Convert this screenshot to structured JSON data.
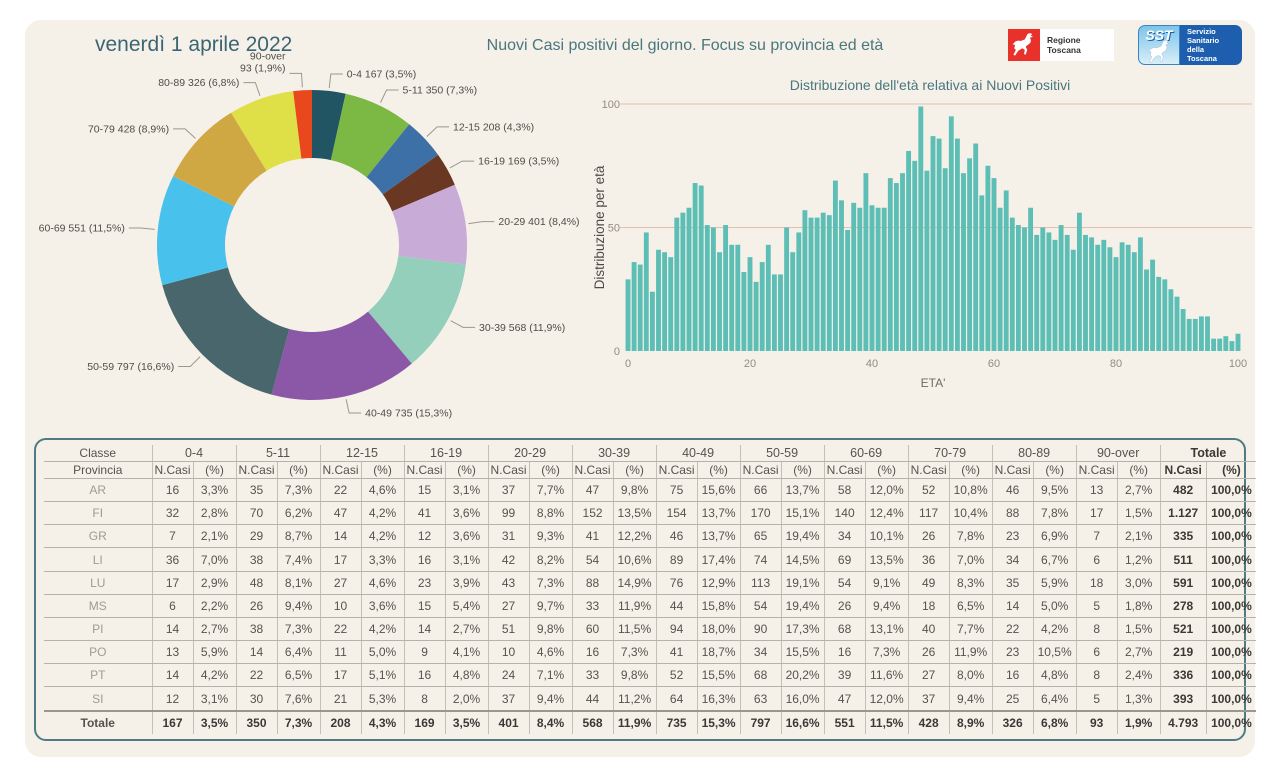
{
  "header": {
    "date": "venerdì 1 aprile 2022",
    "title": "Nuovi Casi positivi del giorno. Focus su provincia ed età",
    "logos": {
      "regione_label": "Regione Toscana",
      "regione_color": "#e8312a",
      "sst_abbr": "SST",
      "sst_label": "Servizio\nSanitario\ndella\nToscana",
      "sst_dark_blue": "#1d5fae",
      "sst_light_blue": "#7cc4e8"
    }
  },
  "chart_data": [
    {
      "type": "pie",
      "donut": true,
      "title": "",
      "categories": [
        "0-4",
        "5-11",
        "12-15",
        "16-19",
        "20-29",
        "30-39",
        "40-49",
        "50-59",
        "60-69",
        "70-79",
        "80-89",
        "90-over"
      ],
      "values": [
        167,
        350,
        208,
        169,
        401,
        568,
        735,
        797,
        551,
        428,
        326,
        93
      ],
      "percents": [
        "3,5%",
        "7,3%",
        "4,3%",
        "3,5%",
        "8,4%",
        "11,9%",
        "15,3%",
        "16,6%",
        "11,5%",
        "8,9%",
        "6,8%",
        "1,9%"
      ],
      "labels": [
        [
          "0-4 167 (3,5%)"
        ],
        [
          "5-11 350 (7,3%)"
        ],
        [
          "12-15 208 (4,3%)"
        ],
        [
          "16-19 169 (3,5%)"
        ],
        [
          "20-29 401 (8,4%)"
        ],
        [
          "30-39 568 (11,9%)"
        ],
        [
          "40-49 735 (15,3%)"
        ],
        [
          "50-59 797 (16,6%)"
        ],
        [
          "60-69 551 (11,5%)"
        ],
        [
          "70-79 428 (8,9%)"
        ],
        [
          "80-89 326 (6,8%)"
        ],
        [
          "90-over",
          "93 (1,9%)"
        ]
      ],
      "colors": [
        "#215563",
        "#7cb844",
        "#3d70a6",
        "#6a3723",
        "#c9abd8",
        "#93cfba",
        "#8a58a6",
        "#48666b",
        "#48c2ec",
        "#cfa743",
        "#dfdf48",
        "#e8481c"
      ],
      "legend_position": "outside-labels"
    },
    {
      "type": "bar",
      "title": "Distribuzione dell'età relativa ai Nuovi Positivi",
      "xlabel": "ETA'",
      "ylabel": "Distribuzione per età",
      "x_min": 0,
      "x_max": 100,
      "values": [
        29,
        36,
        35,
        48,
        24,
        41,
        40,
        38,
        54,
        56,
        58,
        68,
        67,
        51,
        50,
        40,
        51,
        43,
        43,
        32,
        38,
        28,
        36,
        43,
        31,
        31,
        50,
        40,
        48,
        57,
        54,
        54,
        56,
        55,
        69,
        61,
        49,
        60,
        58,
        72,
        59,
        58,
        58,
        70,
        68,
        72,
        81,
        77,
        99,
        73,
        87,
        86,
        74,
        95,
        86,
        72,
        78,
        84,
        63,
        75,
        70,
        58,
        65,
        54,
        51,
        50,
        58,
        47,
        50,
        48,
        45,
        51,
        47,
        41,
        56,
        47,
        46,
        43,
        45,
        42,
        38,
        44,
        43,
        40,
        46,
        33,
        37,
        30,
        29,
        25,
        22,
        17,
        13,
        13,
        14,
        14,
        5,
        5,
        6,
        4,
        7
      ],
      "ylim": [
        0,
        105
      ],
      "yticks": [
        0,
        50,
        100
      ],
      "xticks": [
        0,
        20,
        40,
        60,
        80,
        100
      ],
      "gridlines": [
        50,
        100
      ],
      "grid_on": true,
      "bar_color": "#5dbeb6",
      "grid_color": "#e3bfb1"
    }
  ],
  "table": {
    "corner": [
      "Classe",
      "Provincia"
    ],
    "groups": [
      "0-4",
      "5-11",
      "12-15",
      "16-19",
      "20-29",
      "30-39",
      "40-49",
      "50-59",
      "60-69",
      "70-79",
      "80-89",
      "90-over",
      "Totale"
    ],
    "subheaders": [
      "N.Casi",
      "(%)"
    ],
    "rows": [
      {
        "provincia": "AR",
        "cells": [
          "16",
          "3,3%",
          "35",
          "7,3%",
          "22",
          "4,6%",
          "15",
          "3,1%",
          "37",
          "7,7%",
          "47",
          "9,8%",
          "75",
          "15,6%",
          "66",
          "13,7%",
          "58",
          "12,0%",
          "52",
          "10,8%",
          "46",
          "9,5%",
          "13",
          "2,7%",
          "482",
          "100,0%"
        ]
      },
      {
        "provincia": "FI",
        "cells": [
          "32",
          "2,8%",
          "70",
          "6,2%",
          "47",
          "4,2%",
          "41",
          "3,6%",
          "99",
          "8,8%",
          "152",
          "13,5%",
          "154",
          "13,7%",
          "170",
          "15,1%",
          "140",
          "12,4%",
          "117",
          "10,4%",
          "88",
          "7,8%",
          "17",
          "1,5%",
          "1.127",
          "100,0%"
        ]
      },
      {
        "provincia": "GR",
        "cells": [
          "7",
          "2,1%",
          "29",
          "8,7%",
          "14",
          "4,2%",
          "12",
          "3,6%",
          "31",
          "9,3%",
          "41",
          "12,2%",
          "46",
          "13,7%",
          "65",
          "19,4%",
          "34",
          "10,1%",
          "26",
          "7,8%",
          "23",
          "6,9%",
          "7",
          "2,1%",
          "335",
          "100,0%"
        ]
      },
      {
        "provincia": "LI",
        "cells": [
          "36",
          "7,0%",
          "38",
          "7,4%",
          "17",
          "3,3%",
          "16",
          "3,1%",
          "42",
          "8,2%",
          "54",
          "10,6%",
          "89",
          "17,4%",
          "74",
          "14,5%",
          "69",
          "13,5%",
          "36",
          "7,0%",
          "34",
          "6,7%",
          "6",
          "1,2%",
          "511",
          "100,0%"
        ]
      },
      {
        "provincia": "LU",
        "cells": [
          "17",
          "2,9%",
          "48",
          "8,1%",
          "27",
          "4,6%",
          "23",
          "3,9%",
          "43",
          "7,3%",
          "88",
          "14,9%",
          "76",
          "12,9%",
          "113",
          "19,1%",
          "54",
          "9,1%",
          "49",
          "8,3%",
          "35",
          "5,9%",
          "18",
          "3,0%",
          "591",
          "100,0%"
        ]
      },
      {
        "provincia": "MS",
        "cells": [
          "6",
          "2,2%",
          "26",
          "9,4%",
          "10",
          "3,6%",
          "15",
          "5,4%",
          "27",
          "9,7%",
          "33",
          "11,9%",
          "44",
          "15,8%",
          "54",
          "19,4%",
          "26",
          "9,4%",
          "18",
          "6,5%",
          "14",
          "5,0%",
          "5",
          "1,8%",
          "278",
          "100,0%"
        ]
      },
      {
        "provincia": "PI",
        "cells": [
          "14",
          "2,7%",
          "38",
          "7,3%",
          "22",
          "4,2%",
          "14",
          "2,7%",
          "51",
          "9,8%",
          "60",
          "11,5%",
          "94",
          "18,0%",
          "90",
          "17,3%",
          "68",
          "13,1%",
          "40",
          "7,7%",
          "22",
          "4,2%",
          "8",
          "1,5%",
          "521",
          "100,0%"
        ]
      },
      {
        "provincia": "PO",
        "cells": [
          "13",
          "5,9%",
          "14",
          "6,4%",
          "11",
          "5,0%",
          "9",
          "4,1%",
          "10",
          "4,6%",
          "16",
          "7,3%",
          "41",
          "18,7%",
          "34",
          "15,5%",
          "16",
          "7,3%",
          "26",
          "11,9%",
          "23",
          "10,5%",
          "6",
          "2,7%",
          "219",
          "100,0%"
        ]
      },
      {
        "provincia": "PT",
        "cells": [
          "14",
          "4,2%",
          "22",
          "6,5%",
          "17",
          "5,1%",
          "16",
          "4,8%",
          "24",
          "7,1%",
          "33",
          "9,8%",
          "52",
          "15,5%",
          "68",
          "20,2%",
          "39",
          "11,6%",
          "27",
          "8,0%",
          "16",
          "4,8%",
          "8",
          "2,4%",
          "336",
          "100,0%"
        ]
      },
      {
        "provincia": "SI",
        "cells": [
          "12",
          "3,1%",
          "30",
          "7,6%",
          "21",
          "5,3%",
          "8",
          "2,0%",
          "37",
          "9,4%",
          "44",
          "11,2%",
          "64",
          "16,3%",
          "63",
          "16,0%",
          "47",
          "12,0%",
          "37",
          "9,4%",
          "25",
          "6,4%",
          "5",
          "1,3%",
          "393",
          "100,0%"
        ]
      }
    ],
    "total_row": {
      "provincia": "Totale",
      "cells": [
        "167",
        "3,5%",
        "350",
        "7,3%",
        "208",
        "4,3%",
        "169",
        "3,5%",
        "401",
        "8,4%",
        "568",
        "11,9%",
        "735",
        "15,3%",
        "797",
        "16,6%",
        "551",
        "11,5%",
        "428",
        "8,9%",
        "326",
        "6,8%",
        "93",
        "1,9%",
        "4.793",
        "100,0%"
      ]
    }
  }
}
